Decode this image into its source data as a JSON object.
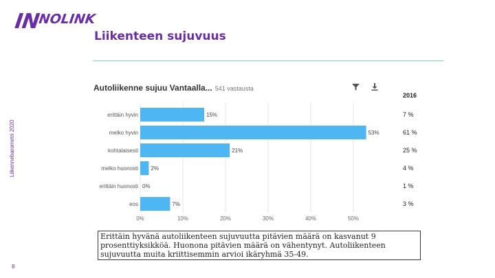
{
  "logo": {
    "part1": "IN",
    "part2": "NOLINK"
  },
  "page_title": "Liikenteen sujuvuus",
  "side_text": "Liikennebarometri 2020",
  "page_number": "8",
  "chart_header": {
    "title": "Autoliikenne sujuu Vantaalla...",
    "subtitle": "541 vastausta"
  },
  "icons": {
    "filter": "filter-icon",
    "download": "download-icon"
  },
  "colors": {
    "bar": "#4fb6f4",
    "accent": "#6b2ca8",
    "rule": "#7fd3c4"
  },
  "chart_data": {
    "type": "bar",
    "orientation": "horizontal",
    "categories": [
      "erittäin hyvin",
      "melko hyvin",
      "kohtalaisesti",
      "melko huonosti",
      "erittäin huonosti",
      "eos"
    ],
    "values": [
      15,
      53,
      21,
      2,
      0,
      7
    ],
    "value_labels": [
      "15%",
      "53%",
      "21%",
      "2%",
      "0%",
      "7%"
    ],
    "xticks": [
      "0%",
      "10%",
      "20%",
      "30%",
      "40%",
      "50%"
    ],
    "xlim": [
      0,
      50
    ],
    "grid": true,
    "comparison": {
      "label": "2016",
      "values": [
        "7 %",
        "61 %",
        "25 %",
        "4 %",
        "1 %",
        "3 %"
      ]
    }
  },
  "caption": "Erittäin hyvänä autoliikenteen sujuvuutta pitävien määrä on kasvanut 9 prosenttiyksikköä. Huonona pitävien määrä on vähentynyt. Autoliikenteen sujuvuutta muita kriittisemmin arvioi ikäryhmä 35-49."
}
